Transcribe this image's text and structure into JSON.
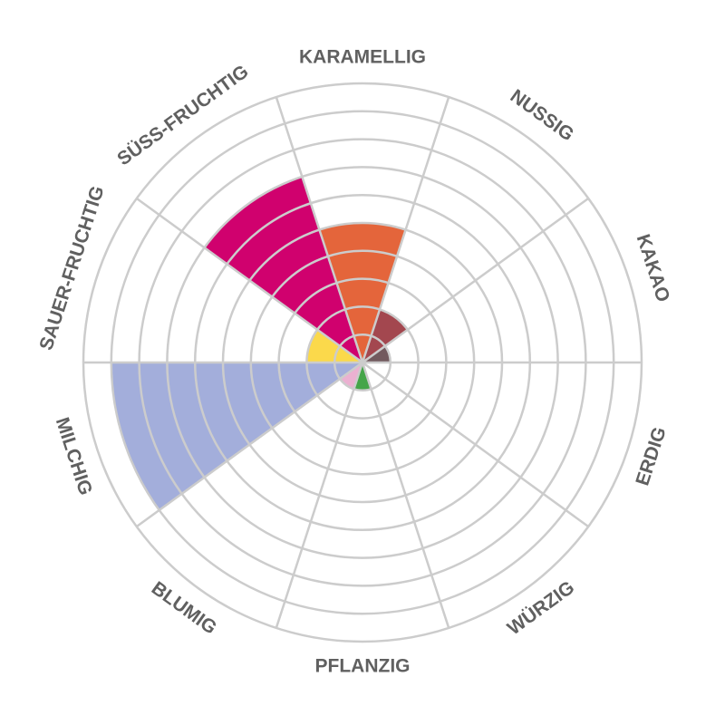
{
  "chart_data": {
    "type": "polar-area",
    "max_value": 10,
    "rings": 10,
    "grid": true,
    "grid_color": "#cccccc",
    "label_color": "#606060",
    "categories": [
      {
        "label": "KARAMELLIG",
        "value": 5,
        "color": "#e4653b"
      },
      {
        "label": "NUSSIG",
        "value": 2,
        "color": "#a3474f"
      },
      {
        "label": "KAKAO",
        "value": 1,
        "color": "#725a5e"
      },
      {
        "label": "ERDIG",
        "value": 0,
        "color": "#cccccc"
      },
      {
        "label": "WÜRZIG",
        "value": 0,
        "color": "#cccccc"
      },
      {
        "label": "PFLANZIG",
        "value": 1,
        "color": "#45a549"
      },
      {
        "label": "BLUMIG",
        "value": 1,
        "color": "#ebb1d1"
      },
      {
        "label": "MILCHIG",
        "value": 9,
        "color": "#a3aedb"
      },
      {
        "label": "SAUER-FRUCHTIG",
        "value": 2,
        "color": "#fbd94b"
      },
      {
        "label": "SÜSS-FRUCHTIG",
        "value": 7,
        "color": "#d0016e"
      }
    ]
  }
}
